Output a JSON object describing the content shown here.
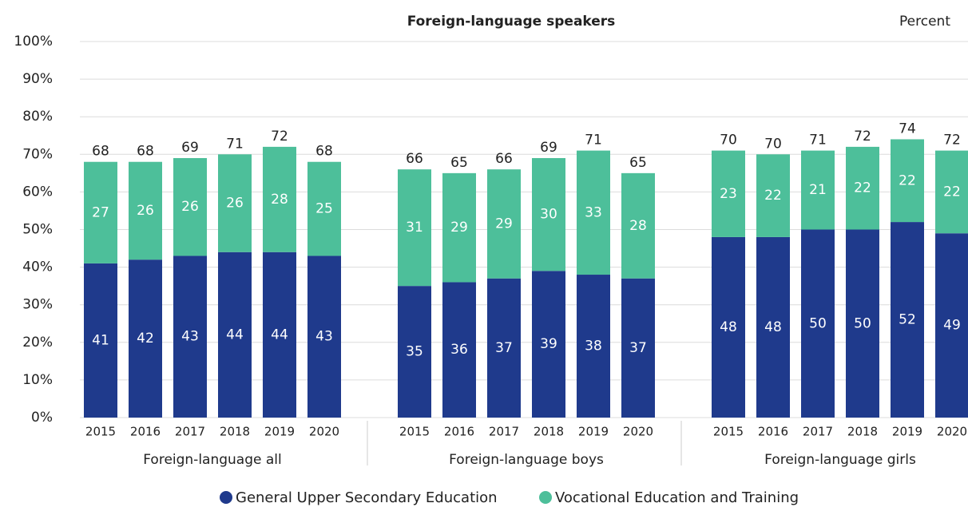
{
  "chart_data": {
    "type": "stacked_bar",
    "title": "Foreign-language speakers",
    "unit_label": "Percent",
    "categories": [
      "2015",
      "2016",
      "2017",
      "2018",
      "2019",
      "2020",
      "2015",
      "2016",
      "2017",
      "2018",
      "2019",
      "2020",
      "2015",
      "2016",
      "2017",
      "2018",
      "2019",
      "2020"
    ],
    "groups": [
      "Foreign-language all",
      "Foreign-language boys",
      "Foreign-language girls"
    ],
    "series": [
      {
        "name": "General Upper Secondary Education",
        "color": "#1f3a8c",
        "values": [
          41,
          42,
          43,
          44,
          44,
          43,
          35,
          36,
          37,
          39,
          38,
          37,
          48,
          48,
          50,
          50,
          52,
          49
        ]
      },
      {
        "name": "Vocational Education and Training",
        "color": "#4dbf9a",
        "values": [
          27,
          26,
          26,
          26,
          28,
          25,
          31,
          29,
          29,
          30,
          33,
          28,
          23,
          22,
          21,
          22,
          22,
          22
        ]
      }
    ],
    "totals": [
      68,
      68,
      69,
      71,
      72,
      68,
      66,
      65,
      66,
      69,
      71,
      65,
      70,
      70,
      71,
      72,
      74,
      72
    ],
    "ylim": [
      0,
      100
    ],
    "yticks": [
      {
        "value": 0,
        "label": "0%"
      },
      {
        "value": 10,
        "label": "10%"
      },
      {
        "value": 20,
        "label": "20%"
      },
      {
        "value": 30,
        "label": "30%"
      },
      {
        "value": 40,
        "label": "40%"
      },
      {
        "value": 50,
        "label": "50%"
      },
      {
        "value": 60,
        "label": "60%"
      },
      {
        "value": 70,
        "label": "70%"
      },
      {
        "value": 80,
        "label": "80%"
      },
      {
        "value": 90,
        "label": "90%"
      },
      {
        "value": 100,
        "label": "100%"
      }
    ],
    "grid": true
  }
}
